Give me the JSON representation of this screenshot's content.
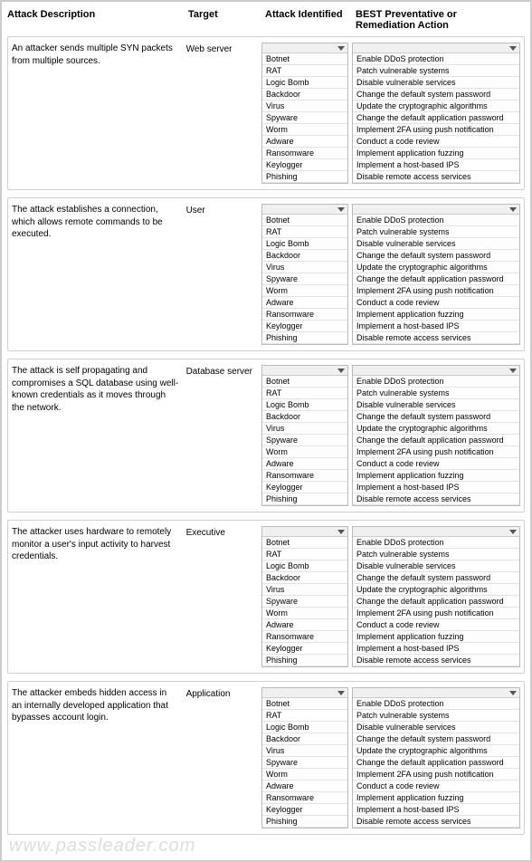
{
  "headers": {
    "desc": "Attack Description",
    "target": "Target",
    "attack": "Attack Identified",
    "action": "BEST Preventative or Remediation Action"
  },
  "attack_identified_options": [
    "Botnet",
    "RAT",
    "Logic Bomb",
    "Backdoor",
    "Virus",
    "Spyware",
    "Worm",
    "Adware",
    "Ransomware",
    "Keylogger",
    "Phishing"
  ],
  "action_options": [
    "Enable DDoS protection",
    "Patch vulnerable systems",
    "Disable vulnerable services",
    "Change the default system password",
    "Update the cryptographic algorithms",
    "Change the default application password",
    "Implement 2FA using push notification",
    "Conduct a code review",
    "Implement application fuzzing",
    "Implement a host-based IPS",
    "Disable remote access services"
  ],
  "rows": [
    {
      "desc": "An attacker sends multiple SYN packets from multiple sources.",
      "target": "Web server"
    },
    {
      "desc": "The attack establishes a connection, which allows remote commands to be executed.",
      "target": "User"
    },
    {
      "desc": "The attack is self propagating and compromises a SQL database using well-known credentials as it moves through the network.",
      "target": "Database server"
    },
    {
      "desc": "The attacker uses hardware to remotely monitor a user's input activity to harvest credentials.",
      "target": "Executive"
    },
    {
      "desc": "The attacker embeds hidden access in an internally developed application that bypasses account login.",
      "target": "Application"
    }
  ],
  "watermark": "www.passleader.com",
  "style": {
    "border_color": "#d0d0d0",
    "outer_border_color": "#cccccc",
    "header_fontsize": 11,
    "body_fontsize": 10,
    "list_fontsize": 9,
    "watermark_color": "#dddddd"
  }
}
